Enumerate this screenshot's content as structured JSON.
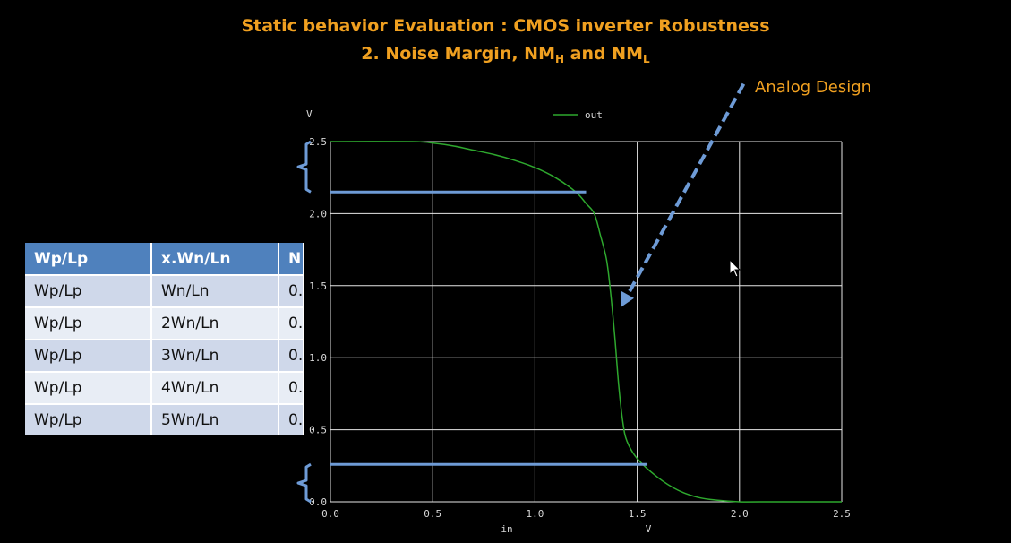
{
  "title": {
    "line1": "Static behavior Evaluation : CMOS inverter Robustness",
    "line2_prefix": "2. Noise Margin, NM",
    "line2_sub_h": "H",
    "line2_mid": " and NM",
    "line2_sub_l": "L"
  },
  "annotation": "Analog Design",
  "colors": {
    "title": "#f0a020",
    "curve": "#2ea82e",
    "grid": "#ffffff",
    "marker": "#6e9bd6"
  },
  "chart_data": {
    "type": "line",
    "xlabel": "in",
    "xunit": "V",
    "ylabel": "V",
    "xlim": [
      0,
      2.5
    ],
    "ylim": [
      0,
      2.5
    ],
    "xticks": [
      "0.0",
      "0.5",
      "1.0",
      "1.5",
      "2.0",
      "2.5"
    ],
    "yticks": [
      "0.0",
      "0.5",
      "1.0",
      "1.5",
      "2.0",
      "2.5"
    ],
    "grid": true,
    "legend_position": "top-center",
    "series": [
      {
        "name": "out",
        "x": [
          0.0,
          0.4,
          0.5,
          0.6,
          0.7,
          0.8,
          0.9,
          1.0,
          1.1,
          1.2,
          1.25,
          1.29,
          1.32,
          1.35,
          1.37,
          1.39,
          1.41,
          1.43,
          1.45,
          1.5,
          1.6,
          1.7,
          1.8,
          1.9,
          2.0,
          2.1,
          2.5
        ],
        "y": [
          2.5,
          2.5,
          2.49,
          2.47,
          2.44,
          2.41,
          2.37,
          2.32,
          2.25,
          2.15,
          2.07,
          2.0,
          1.85,
          1.68,
          1.45,
          1.15,
          0.8,
          0.55,
          0.42,
          0.3,
          0.17,
          0.08,
          0.03,
          0.01,
          0.0,
          0.0,
          0.0
        ]
      }
    ],
    "markers": [
      {
        "type": "hline",
        "y": 2.15,
        "x_end": 1.25
      },
      {
        "type": "hline",
        "y": 0.26,
        "x_end": 1.55
      },
      {
        "type": "bracket",
        "y_from": 2.15,
        "y_to": 2.5
      },
      {
        "type": "bracket",
        "y_from": 0.0,
        "y_to": 0.26
      }
    ],
    "arrow": {
      "x_from": 2.02,
      "y_from": 2.9,
      "x_to": 1.42,
      "y_to": 1.35
    }
  },
  "table": {
    "headers": [
      "Wp/Lp",
      "x.Wn/Ln",
      "N"
    ],
    "rows": [
      [
        "Wp/Lp",
        "Wn/Ln",
        "0."
      ],
      [
        "Wp/Lp",
        "2Wn/Ln",
        "0."
      ],
      [
        "Wp/Lp",
        "3Wn/Ln",
        "0."
      ],
      [
        "Wp/Lp",
        "4Wn/Ln",
        "0."
      ],
      [
        "Wp/Lp",
        "5Wn/Ln",
        "0."
      ]
    ]
  }
}
